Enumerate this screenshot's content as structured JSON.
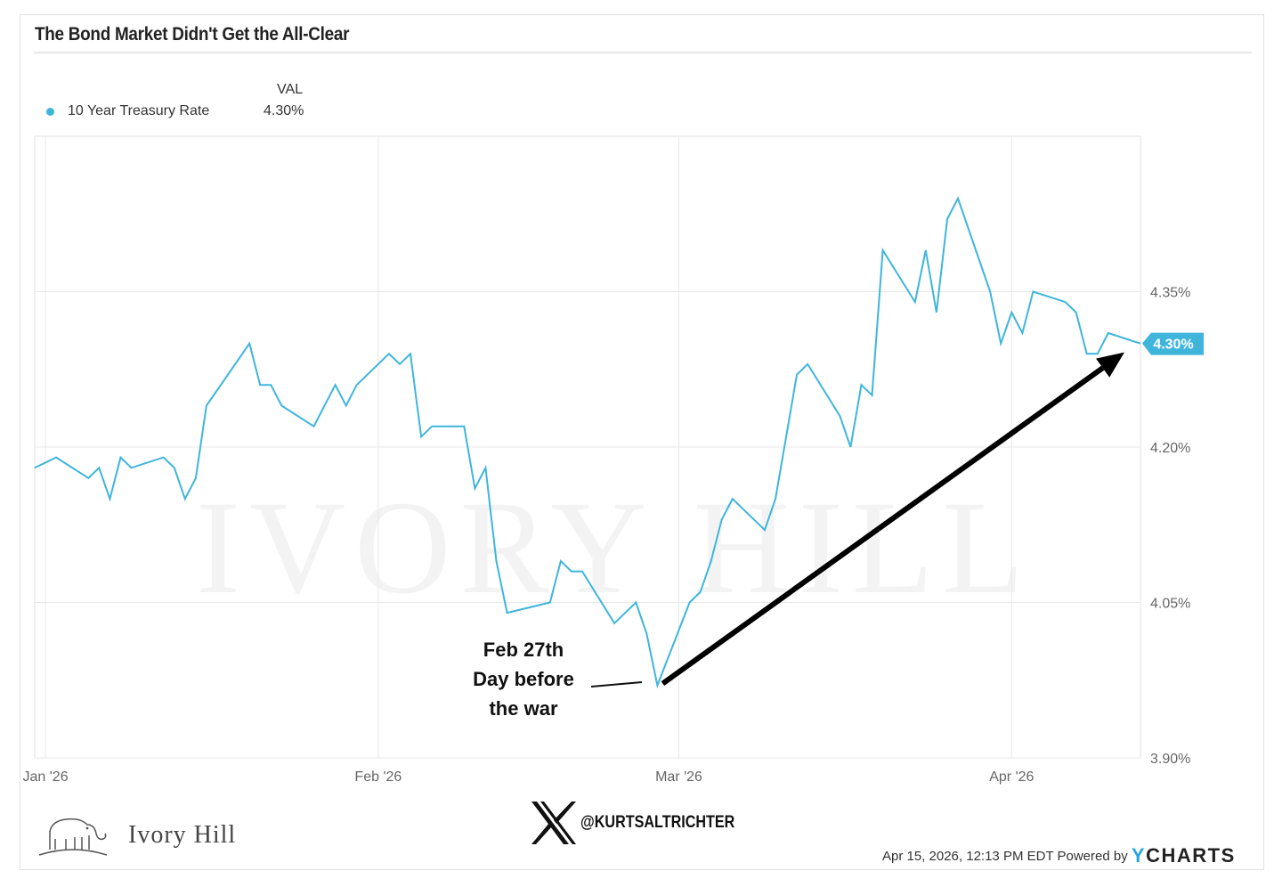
{
  "title": "The Bond Market Didn't Get the All-Clear",
  "legend": {
    "column_header": "VAL",
    "series_name": "10 Year Treasury Rate",
    "series_value": "4.30%",
    "color": "#3fb5dc"
  },
  "annotation": {
    "lines": [
      "Feb 27th",
      "Day before",
      "the war"
    ]
  },
  "footer": {
    "timestamp": "Apr 15, 2026, 12:13 PM EDT Powered by",
    "brand_y": "Y",
    "brand_rest": "CHARTS",
    "x_handle": "@KURTSALTRICHTER",
    "logo_text": "Ivory Hill",
    "watermark_text": "IVORY HILL"
  },
  "chart_data": {
    "type": "line",
    "title": "The Bond Market Didn't Get the All-Clear",
    "xlabel": "",
    "ylabel": "",
    "xlim": [
      "2025-12-31",
      "2026-04-13"
    ],
    "ylim": [
      3.9,
      4.5
    ],
    "grid": true,
    "legend_placement": "top-left",
    "x_ticks": [
      {
        "date": "2026-01-01",
        "label": "Jan '26"
      },
      {
        "date": "2026-02-01",
        "label": "Feb '26"
      },
      {
        "date": "2026-03-01",
        "label": "Mar '26"
      },
      {
        "date": "2026-04-01",
        "label": "Apr '26"
      }
    ],
    "y_ticks": [
      {
        "value": 3.9,
        "label": "3.90%"
      },
      {
        "value": 4.05,
        "label": "4.05%"
      },
      {
        "value": 4.2,
        "label": "4.20%"
      },
      {
        "value": 4.35,
        "label": "4.35%"
      }
    ],
    "last_value_label": "4.30%",
    "series": [
      {
        "name": "10 Year Treasury Rate",
        "color": "#3fb5dc",
        "points": [
          [
            "2025-12-31",
            4.18
          ],
          [
            "2026-01-02",
            4.19
          ],
          [
            "2026-01-05",
            4.17
          ],
          [
            "2026-01-06",
            4.18
          ],
          [
            "2026-01-07",
            4.15
          ],
          [
            "2026-01-08",
            4.19
          ],
          [
            "2026-01-09",
            4.18
          ],
          [
            "2026-01-12",
            4.19
          ],
          [
            "2026-01-13",
            4.18
          ],
          [
            "2026-01-14",
            4.15
          ],
          [
            "2026-01-15",
            4.17
          ],
          [
            "2026-01-16",
            4.24
          ],
          [
            "2026-01-20",
            4.3
          ],
          [
            "2026-01-21",
            4.26
          ],
          [
            "2026-01-22",
            4.26
          ],
          [
            "2026-01-23",
            4.24
          ],
          [
            "2026-01-26",
            4.22
          ],
          [
            "2026-01-28",
            4.26
          ],
          [
            "2026-01-29",
            4.24
          ],
          [
            "2026-01-30",
            4.26
          ],
          [
            "2026-02-02",
            4.29
          ],
          [
            "2026-02-03",
            4.28
          ],
          [
            "2026-02-04",
            4.29
          ],
          [
            "2026-02-05",
            4.21
          ],
          [
            "2026-02-06",
            4.22
          ],
          [
            "2026-02-09",
            4.22
          ],
          [
            "2026-02-10",
            4.16
          ],
          [
            "2026-02-11",
            4.18
          ],
          [
            "2026-02-12",
            4.09
          ],
          [
            "2026-02-13",
            4.04
          ],
          [
            "2026-02-17",
            4.05
          ],
          [
            "2026-02-18",
            4.09
          ],
          [
            "2026-02-19",
            4.08
          ],
          [
            "2026-02-20",
            4.08
          ],
          [
            "2026-02-23",
            4.03
          ],
          [
            "2026-02-25",
            4.05
          ],
          [
            "2026-02-26",
            4.02
          ],
          [
            "2026-02-27",
            3.97
          ],
          [
            "2026-03-02",
            4.05
          ],
          [
            "2026-03-03",
            4.06
          ],
          [
            "2026-03-04",
            4.09
          ],
          [
            "2026-03-05",
            4.13
          ],
          [
            "2026-03-06",
            4.15
          ],
          [
            "2026-03-09",
            4.12
          ],
          [
            "2026-03-10",
            4.15
          ],
          [
            "2026-03-12",
            4.27
          ],
          [
            "2026-03-13",
            4.28
          ],
          [
            "2026-03-16",
            4.23
          ],
          [
            "2026-03-17",
            4.2
          ],
          [
            "2026-03-18",
            4.26
          ],
          [
            "2026-03-19",
            4.25
          ],
          [
            "2026-03-20",
            4.39
          ],
          [
            "2026-03-23",
            4.34
          ],
          [
            "2026-03-24",
            4.39
          ],
          [
            "2026-03-25",
            4.33
          ],
          [
            "2026-03-26",
            4.42
          ],
          [
            "2026-03-27",
            4.44
          ],
          [
            "2026-03-30",
            4.35
          ],
          [
            "2026-03-31",
            4.3
          ],
          [
            "2026-04-01",
            4.33
          ],
          [
            "2026-04-02",
            4.31
          ],
          [
            "2026-04-03",
            4.35
          ],
          [
            "2026-04-06",
            4.34
          ],
          [
            "2026-04-07",
            4.33
          ],
          [
            "2026-04-08",
            4.29
          ],
          [
            "2026-04-09",
            4.29
          ],
          [
            "2026-04-10",
            4.31
          ],
          [
            "2026-04-13",
            4.3
          ]
        ]
      }
    ],
    "annotation_arrow": {
      "from": [
        "2026-02-27",
        3.97
      ],
      "to": [
        "2026-04-13",
        4.3
      ]
    }
  }
}
